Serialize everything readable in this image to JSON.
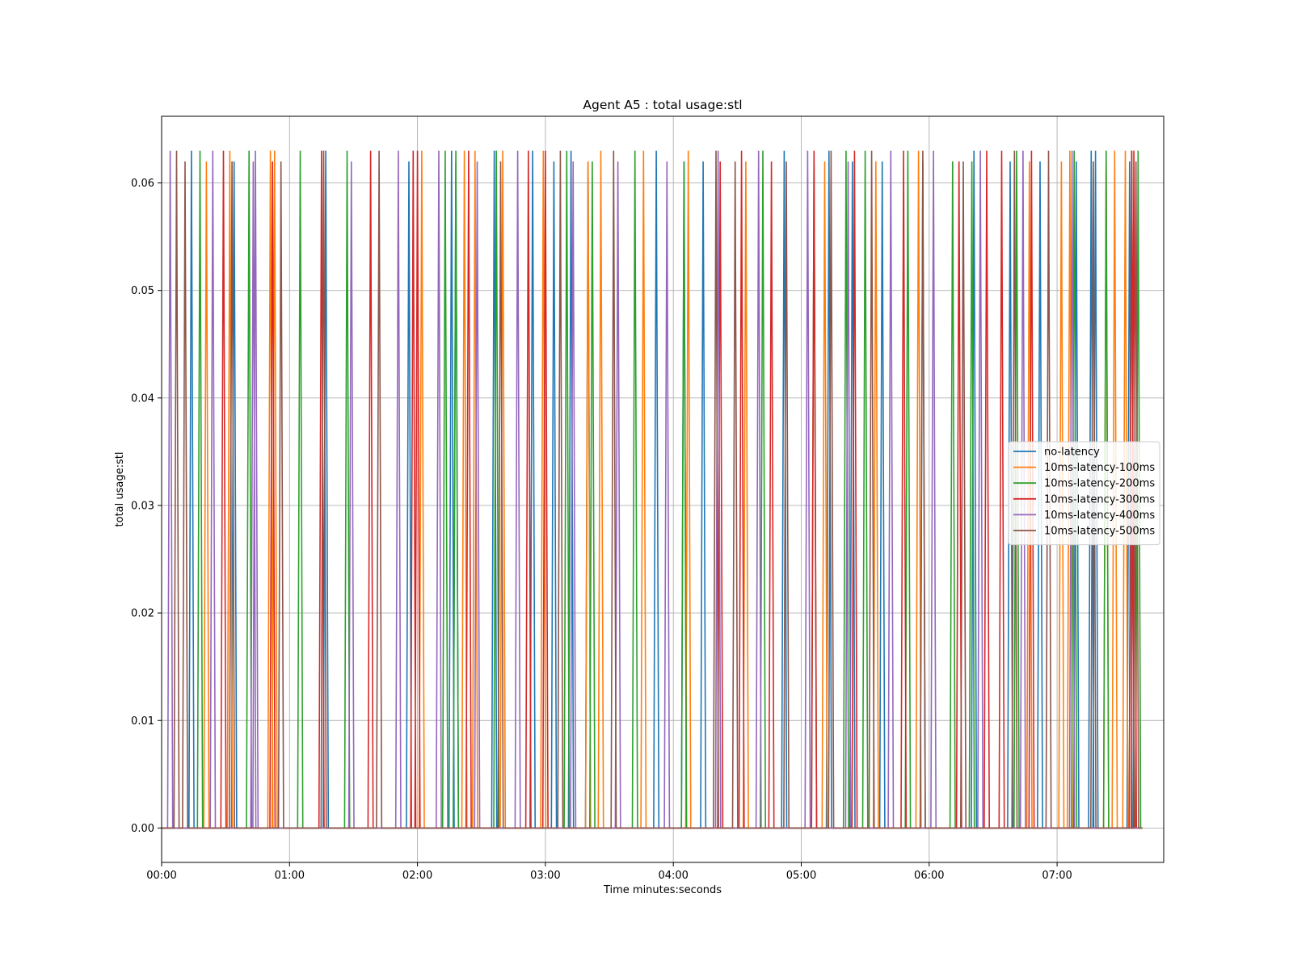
{
  "chart_data": {
    "type": "line",
    "title": "Agent A5 : total usage:stl",
    "xlabel": "Time minutes:seconds",
    "ylabel": "total usage:stl",
    "xlim_seconds": [
      0,
      470
    ],
    "ylim": [
      -0.0032,
      0.0662
    ],
    "x_ticks": [
      "00:00",
      "01:00",
      "02:00",
      "03:00",
      "04:00",
      "05:00",
      "06:00",
      "07:00"
    ],
    "y_ticks": [
      "0.00",
      "0.01",
      "0.02",
      "0.03",
      "0.04",
      "0.05",
      "0.06"
    ],
    "grid": true,
    "legend_position": "center-right",
    "series": [
      {
        "name": "no-latency",
        "color": "#1f77b4",
        "baseline": 0.0,
        "pulses": [
          [
            "00:14",
            0.063
          ],
          [
            "00:34",
            0.062
          ],
          [
            "01:17",
            0.063
          ],
          [
            "01:56",
            0.062
          ],
          [
            "02:16",
            0.063
          ],
          [
            "02:18",
            0.062
          ],
          [
            "02:36",
            0.063
          ],
          [
            "02:54",
            0.063
          ],
          [
            "03:04",
            0.062
          ],
          [
            "03:12",
            0.063
          ],
          [
            "03:20",
            0.062
          ],
          [
            "03:52",
            0.063
          ],
          [
            "04:05",
            0.062
          ],
          [
            "04:14",
            0.062
          ],
          [
            "04:52",
            0.063
          ],
          [
            "05:13",
            0.063
          ],
          [
            "05:24",
            0.062
          ],
          [
            "05:38",
            0.062
          ],
          [
            "05:57",
            0.062
          ],
          [
            "06:21",
            0.063
          ],
          [
            "06:38",
            0.062
          ],
          [
            "06:52",
            0.062
          ],
          [
            "07:09",
            0.062
          ],
          [
            "07:16",
            0.063
          ],
          [
            "07:18",
            0.063
          ],
          [
            "07:34",
            0.062
          ]
        ],
        "end": "07:40"
      },
      {
        "name": "10ms-latency-100ms",
        "color": "#ff7f0e",
        "baseline": 0.0,
        "pulses": [
          [
            "00:21",
            0.062
          ],
          [
            "00:32",
            0.063
          ],
          [
            "00:51",
            0.063
          ],
          [
            "00:53",
            0.063
          ],
          [
            "02:02",
            0.063
          ],
          [
            "02:22",
            0.063
          ],
          [
            "02:27",
            0.063
          ],
          [
            "02:40",
            0.063
          ],
          [
            "02:59",
            0.063
          ],
          [
            "03:20",
            0.062
          ],
          [
            "03:26",
            0.063
          ],
          [
            "03:46",
            0.063
          ],
          [
            "04:07",
            0.063
          ],
          [
            "04:34",
            0.062
          ],
          [
            "05:11",
            0.062
          ],
          [
            "05:35",
            0.062
          ],
          [
            "05:55",
            0.063
          ],
          [
            "06:47",
            0.062
          ],
          [
            "07:02",
            0.062
          ],
          [
            "07:06",
            0.063
          ],
          [
            "07:23",
            0.062
          ],
          [
            "07:27",
            0.063
          ],
          [
            "07:32",
            0.063
          ]
        ],
        "end": "07:40"
      },
      {
        "name": "10ms-latency-200ms",
        "color": "#2ca02c",
        "baseline": 0.0,
        "pulses": [
          [
            "00:18",
            0.063
          ],
          [
            "00:41",
            0.063
          ],
          [
            "01:05",
            0.063
          ],
          [
            "01:27",
            0.063
          ],
          [
            "02:13",
            0.063
          ],
          [
            "02:18",
            0.063
          ],
          [
            "02:37",
            0.063
          ],
          [
            "03:10",
            0.063
          ],
          [
            "03:22",
            0.062
          ],
          [
            "03:42",
            0.063
          ],
          [
            "04:05",
            0.062
          ],
          [
            "04:42",
            0.063
          ],
          [
            "05:06",
            0.062
          ],
          [
            "05:21",
            0.063
          ],
          [
            "05:30",
            0.063
          ],
          [
            "05:50",
            0.063
          ],
          [
            "06:11",
            0.062
          ],
          [
            "06:20",
            0.062
          ],
          [
            "06:41",
            0.063
          ],
          [
            "07:08",
            0.063
          ],
          [
            "07:23",
            0.063
          ],
          [
            "07:35",
            0.063
          ],
          [
            "07:38",
            0.063
          ]
        ],
        "end": "07:40"
      },
      {
        "name": "10ms-latency-300ms",
        "color": "#d62728",
        "baseline": 0.0,
        "pulses": [
          [
            "00:29",
            0.063
          ],
          [
            "00:52",
            0.062
          ],
          [
            "01:15",
            0.063
          ],
          [
            "01:38",
            0.063
          ],
          [
            "01:58",
            0.063
          ],
          [
            "02:00",
            0.063
          ],
          [
            "02:24",
            0.063
          ],
          [
            "02:52",
            0.063
          ],
          [
            "03:00",
            0.063
          ],
          [
            "04:22",
            0.062
          ],
          [
            "04:32",
            0.063
          ],
          [
            "04:46",
            0.062
          ],
          [
            "05:06",
            0.063
          ],
          [
            "05:25",
            0.063
          ],
          [
            "05:48",
            0.063
          ],
          [
            "06:14",
            0.062
          ],
          [
            "06:27",
            0.063
          ],
          [
            "06:34",
            0.063
          ],
          [
            "06:48",
            0.063
          ],
          [
            "07:35",
            0.063
          ],
          [
            "07:36",
            0.063
          ]
        ],
        "end": "07:40"
      },
      {
        "name": "10ms-latency-400ms",
        "color": "#9467bd",
        "baseline": 0.0,
        "pulses": [
          [
            "00:04",
            0.063
          ],
          [
            "00:24",
            0.063
          ],
          [
            "00:43",
            0.062
          ],
          [
            "00:44",
            0.063
          ],
          [
            "01:29",
            0.062
          ],
          [
            "01:51",
            0.063
          ],
          [
            "02:10",
            0.063
          ],
          [
            "02:28",
            0.062
          ],
          [
            "02:47",
            0.063
          ],
          [
            "03:13",
            0.062
          ],
          [
            "03:34",
            0.062
          ],
          [
            "03:57",
            0.062
          ],
          [
            "04:21",
            0.063
          ],
          [
            "04:40",
            0.063
          ],
          [
            "05:03",
            0.063
          ],
          [
            "05:22",
            0.062
          ],
          [
            "05:42",
            0.063
          ],
          [
            "06:02",
            0.063
          ],
          [
            "06:24",
            0.063
          ],
          [
            "06:44",
            0.063
          ],
          [
            "07:07",
            0.063
          ]
        ],
        "end": "07:40"
      },
      {
        "name": "10ms-latency-500ms",
        "color": "#8c564b",
        "baseline": 0.0,
        "pulses": [
          [
            "00:07",
            0.063
          ],
          [
            "00:11",
            0.062
          ],
          [
            "00:33",
            0.062
          ],
          [
            "00:56",
            0.062
          ],
          [
            "01:16",
            0.063
          ],
          [
            "01:42",
            0.063
          ],
          [
            "02:39",
            0.062
          ],
          [
            "03:07",
            0.063
          ],
          [
            "03:32",
            0.063
          ],
          [
            "04:20",
            0.063
          ],
          [
            "04:29",
            0.062
          ],
          [
            "04:53",
            0.062
          ],
          [
            "05:14",
            0.063
          ],
          [
            "05:33",
            0.063
          ],
          [
            "05:57",
            0.063
          ],
          [
            "06:16",
            0.062
          ],
          [
            "06:40",
            0.063
          ],
          [
            "06:56",
            0.063
          ],
          [
            "07:17",
            0.062
          ],
          [
            "07:37",
            0.062
          ]
        ],
        "end": "07:40"
      }
    ]
  }
}
